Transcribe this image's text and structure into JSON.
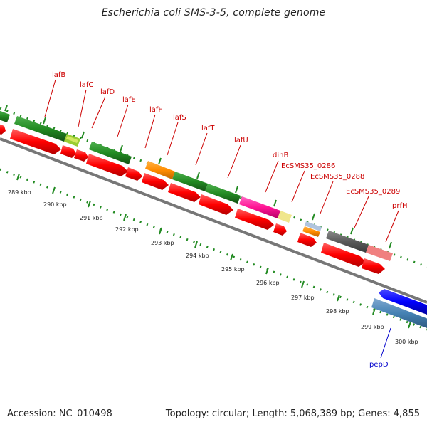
{
  "title": "Escherichia coli SMS-3-5, complete genome",
  "footer": {
    "accession": "Accession: NC_010498",
    "summary": "Topology: circular; Length: 5,068,389 bp; Genes: 4,855"
  },
  "genome": {
    "accession": "NC_010498",
    "topology": "circular",
    "length_bp": 5068389,
    "genes": 4855
  },
  "gene_labels": [
    {
      "id": "lafB",
      "text": "lafB"
    },
    {
      "id": "lafC",
      "text": "lafC"
    },
    {
      "id": "lafD",
      "text": "lafD"
    },
    {
      "id": "lafE",
      "text": "lafE"
    },
    {
      "id": "lafF",
      "text": "lafF"
    },
    {
      "id": "lafS",
      "text": "lafS"
    },
    {
      "id": "lafT",
      "text": "lafT"
    },
    {
      "id": "lafU",
      "text": "lafU"
    },
    {
      "id": "dinB",
      "text": "dinB"
    },
    {
      "id": "EcSMS35_0286",
      "text": "EcSMS35_0286"
    },
    {
      "id": "EcSMS35_0288",
      "text": "EcSMS35_0288"
    },
    {
      "id": "EcSMS35_0289",
      "text": "EcSMS35_0289"
    },
    {
      "id": "prfH",
      "text": "prfH"
    },
    {
      "id": "pepD",
      "text": "pepD"
    }
  ],
  "kbp_ticks": [
    "289 kbp",
    "290 kbp",
    "291 kbp",
    "292 kbp",
    "293 kbp",
    "294 kbp",
    "295 kbp",
    "296 kbp",
    "297 kbp",
    "298 kbp",
    "299 kbp",
    "300 kbp"
  ],
  "colors": {
    "label_red": "#cc0000",
    "label_blue": "#0000cc",
    "cds_red": "#ff0000",
    "gene_green": "#228b22",
    "backbone_grey": "#808080",
    "tick_green": "#228b22"
  }
}
